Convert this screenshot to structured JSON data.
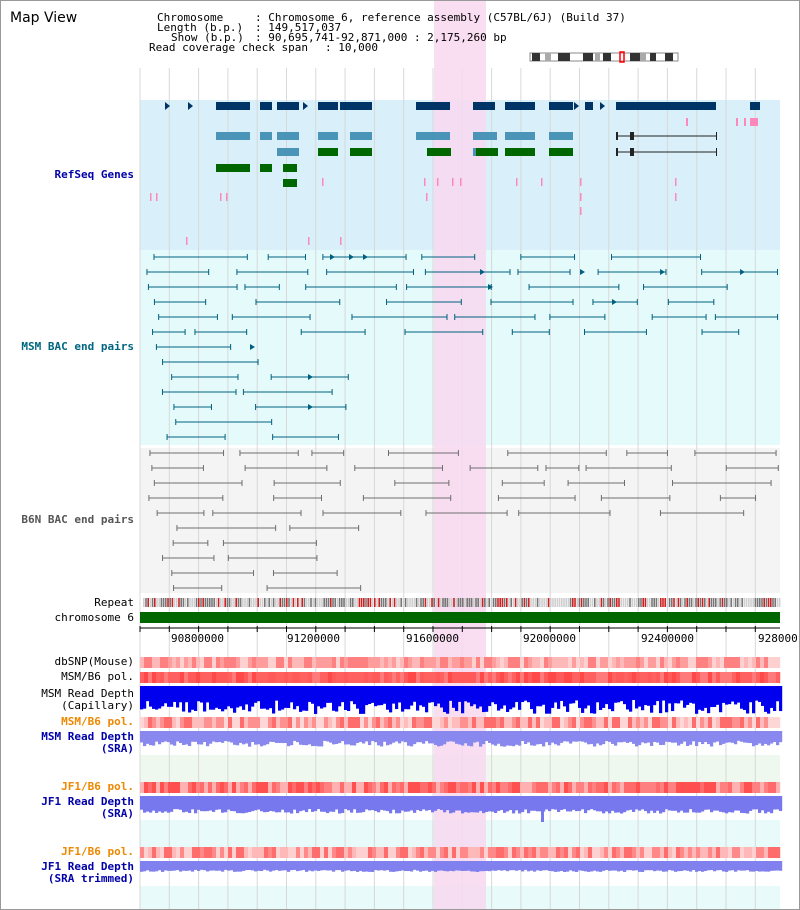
{
  "view_title": "Map View",
  "info": {
    "chromosome_label": "Chromosome",
    "chromosome_value": ": Chromosome 6, reference assembly (C57BL/6J) (Build 37)",
    "length_label": "Length (b.p.)",
    "length_value": ": 149,517,037",
    "show_label": "Show (b.p.)",
    "show_value": ": 90,695,741-92,871,000 : 2,175,260 bp",
    "coverage_label": "Read coverage check span",
    "coverage_value": ": 10,000"
  },
  "tracks": {
    "refseq": "RefSeq Genes",
    "msm_bac": "MSM BAC end pairs",
    "b6n_bac": "B6N BAC end pairs",
    "repeat": "Repeat",
    "chromosome": "chromosome 6",
    "dbsnp": "dbSNP(Mouse)",
    "msm_b6_pol_1": "MSM/B6 pol.",
    "msm_depth_cap_1": "MSM Read Depth",
    "msm_depth_cap_2": "(Capillary)",
    "msm_b6_pol_2": "MSM/B6 pol.",
    "msm_depth_sra_1": "MSM Read Depth",
    "msm_depth_sra_2": "(SRA)",
    "jf1_b6_pol_1": "JF1/B6 pol.",
    "jf1_depth_sra_1": "JF1 Read Depth",
    "jf1_depth_sra_2": "(SRA)",
    "jf1_b6_pol_2": "JF1/B6 pol.",
    "jf1_depth_trim_1": "JF1 Read Depth",
    "jf1_depth_trim_2": "(SRA trimmed)"
  },
  "axis": {
    "ticks": [
      "90800000",
      "91200000",
      "91600000",
      "92000000",
      "92400000",
      "928000"
    ]
  },
  "colors": {
    "refseq_bg": "#d9f0fa",
    "bac_bg": "#e5fbfb",
    "highlight": "#f8d8f0",
    "refseq_dark": "#003366",
    "refseq_mid": "#4a94b8",
    "refseq_green": "#006600",
    "msm_bac": "#00607f",
    "b6n_bac": "#6e6e6e",
    "chromosome_bar": "#006600",
    "msm_depth_cap": "#0000ee",
    "msm_depth_sra": "#8888ee",
    "jf1_depth": "#7777ee",
    "label_blue": "#0000aa",
    "label_orange": "#ee8800",
    "label_teal": "#006680"
  }
}
